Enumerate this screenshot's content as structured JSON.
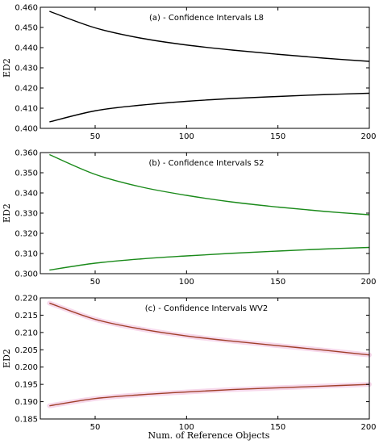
{
  "figure": {
    "xlabel": "Num. of Reference Objects"
  },
  "chart_data": [
    {
      "type": "line",
      "title": "(a) - Confidence Intervals L8",
      "xlabel": "",
      "ylabel": "ED2",
      "xlim": [
        20,
        200
      ],
      "ylim": [
        0.4,
        0.46
      ],
      "xticks": [
        50,
        100,
        150,
        200
      ],
      "yticks": [
        0.4,
        0.41,
        0.42,
        0.43,
        0.44,
        0.45,
        0.46
      ],
      "ytick_labels": [
        "0.400",
        "0.410",
        "0.420",
        "0.430",
        "0.440",
        "0.450",
        "0.460"
      ],
      "color": "#000000",
      "band_color": "",
      "x": [
        25,
        50,
        75,
        100,
        125,
        150,
        175,
        200
      ],
      "series": [
        {
          "values": [
            0.458,
            0.4498,
            0.4447,
            0.4413,
            0.4388,
            0.4367,
            0.4348,
            0.4332
          ]
        },
        {
          "values": [
            0.4032,
            0.4087,
            0.4115,
            0.4134,
            0.4148,
            0.4158,
            0.4167,
            0.4174
          ]
        }
      ]
    },
    {
      "type": "line",
      "title": "(b) - Confidence Intervals S2",
      "xlabel": "",
      "ylabel": "ED2",
      "xlim": [
        20,
        200
      ],
      "ylim": [
        0.3,
        0.36
      ],
      "xticks": [
        50,
        100,
        150,
        200
      ],
      "yticks": [
        0.3,
        0.31,
        0.32,
        0.33,
        0.34,
        0.35,
        0.36
      ],
      "ytick_labels": [
        "0.300",
        "0.310",
        "0.320",
        "0.330",
        "0.340",
        "0.350",
        "0.360"
      ],
      "color": "#1a8a1a",
      "band_color": "",
      "x": [
        25,
        50,
        75,
        100,
        125,
        150,
        175,
        200
      ],
      "series": [
        {
          "values": [
            0.359,
            0.3492,
            0.343,
            0.3388,
            0.3355,
            0.333,
            0.3309,
            0.3292
          ]
        },
        {
          "values": [
            0.3018,
            0.3052,
            0.3073,
            0.3088,
            0.3101,
            0.3112,
            0.3122,
            0.313
          ]
        }
      ]
    },
    {
      "type": "line",
      "title": "(c) - Confidence Intervals WV2",
      "xlabel": "Num. of Reference Objects",
      "ylabel": "ED2",
      "xlim": [
        20,
        200
      ],
      "ylim": [
        0.185,
        0.22
      ],
      "xticks": [
        50,
        100,
        150,
        200
      ],
      "yticks": [
        0.185,
        0.19,
        0.195,
        0.2,
        0.205,
        0.21,
        0.215,
        0.22
      ],
      "ytick_labels": [
        "0.185",
        "0.190",
        "0.195",
        "0.200",
        "0.205",
        "0.210",
        "0.215",
        "0.220"
      ],
      "color": "#a0402a",
      "band_color": "#f7d9ec",
      "x": [
        25,
        50,
        75,
        100,
        125,
        150,
        175,
        200
      ],
      "series": [
        {
          "values": [
            0.2185,
            0.2138,
            0.211,
            0.209,
            0.2075,
            0.2062,
            0.2049,
            0.2035
          ]
        },
        {
          "values": [
            0.1888,
            0.1909,
            0.192,
            0.1928,
            0.1935,
            0.194,
            0.1945,
            0.195
          ]
        }
      ]
    }
  ]
}
